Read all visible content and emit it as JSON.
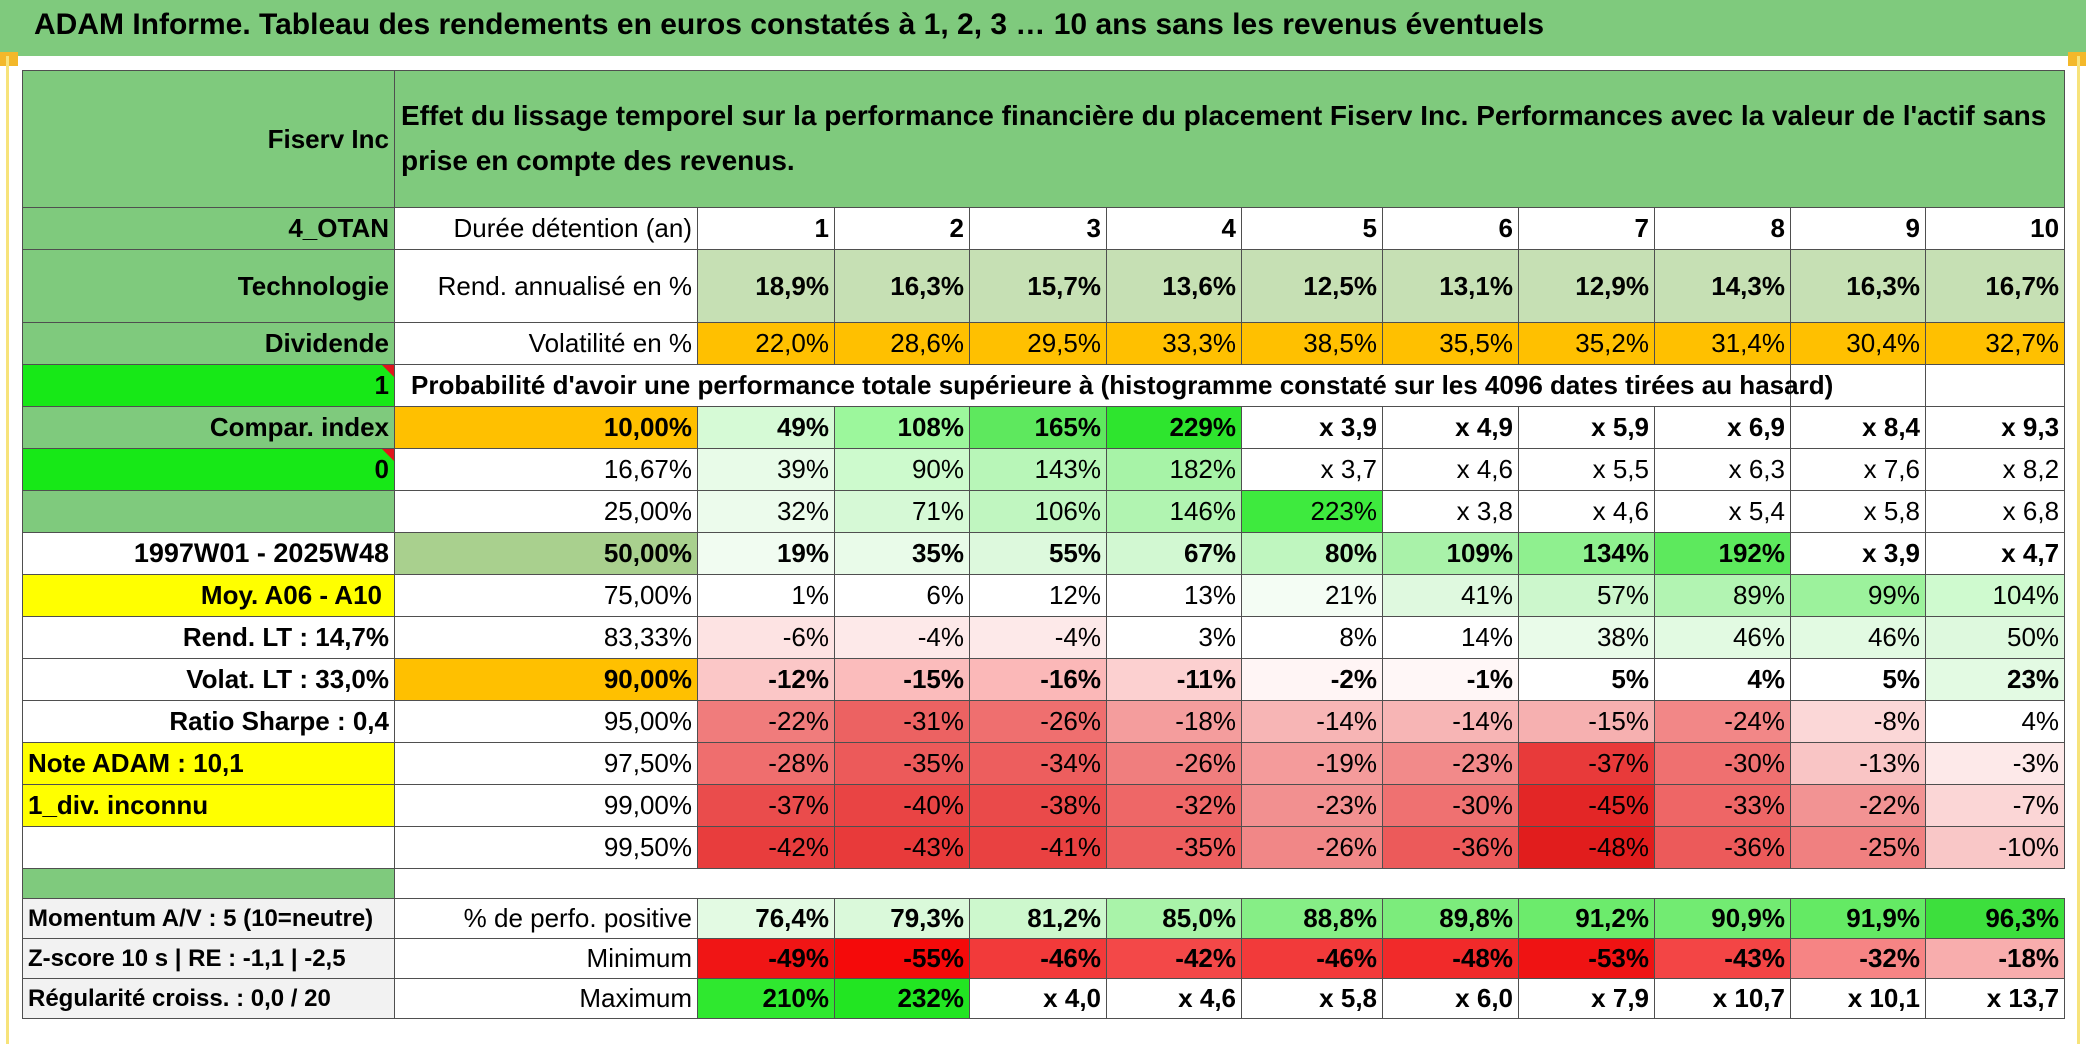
{
  "page_title": "ADAM Informe. Tableau des rendements en euros constatés à 1, 2, 3 … 10 ans sans les revenus éventuels",
  "header": {
    "company": "Fiserv Inc",
    "description": "Effet du lissage temporel sur la performance financière du placement Fiserv Inc. Performances avec la valeur de l'actif sans prise en compte des revenus."
  },
  "side": {
    "code": "4_OTAN",
    "sector": "Technologie",
    "dividend": "Dividende",
    "flag1": "1",
    "compar": "Compar. index",
    "flag0": "0",
    "period": "1997W01 - 2025W48",
    "moy": "Moy. A06 - A10",
    "rend_lt": "Rend. LT :   14,7%",
    "volat_lt": "Volat. LT :   33,0%",
    "sharpe": "Ratio Sharpe :    0,4",
    "note": "Note ADAM : 10,1",
    "div": "1_div. inconnu",
    "momentum": "Momentum A/V : 5 (10=neutre)",
    "zscore": "Z-score 10 s | RE : -1,1 | -2,5",
    "regularite": "Régularité croiss. : 0,0 / 20"
  },
  "duration": {
    "label": "Durée détention (an)",
    "years": [
      "1",
      "2",
      "3",
      "4",
      "5",
      "6",
      "7",
      "8",
      "9",
      "10"
    ]
  },
  "rend": {
    "label": "Rend. annualisé en %",
    "values": [
      "18,9%",
      "16,3%",
      "15,7%",
      "13,6%",
      "12,5%",
      "13,1%",
      "12,9%",
      "14,3%",
      "16,3%",
      "16,7%"
    ]
  },
  "volat": {
    "label": "Volatilité en %",
    "values": [
      "22,0%",
      "28,6%",
      "29,5%",
      "33,3%",
      "38,5%",
      "35,5%",
      "35,2%",
      "31,4%",
      "30,4%",
      "32,7%"
    ]
  },
  "prob_title": "Probabilité d'avoir une performance totale supérieure à (histogramme constaté sur les 4096 dates tirées au hasard)",
  "prob_rows": [
    {
      "pct": "10,00%",
      "values": [
        "49%",
        "108%",
        "165%",
        "229%",
        "x 3,9",
        "x 4,9",
        "x 5,9",
        "x 6,9",
        "x 8,4",
        "x 9,3"
      ]
    },
    {
      "pct": "16,67%",
      "values": [
        "39%",
        "90%",
        "143%",
        "182%",
        "x 3,7",
        "x 4,6",
        "x 5,5",
        "x 6,3",
        "x 7,6",
        "x 8,2"
      ]
    },
    {
      "pct": "25,00%",
      "values": [
        "32%",
        "71%",
        "106%",
        "146%",
        "223%",
        "x 3,8",
        "x 4,6",
        "x 5,4",
        "x 5,8",
        "x 6,8"
      ]
    },
    {
      "pct": "50,00%",
      "values": [
        "19%",
        "35%",
        "55%",
        "67%",
        "80%",
        "109%",
        "134%",
        "192%",
        "x 3,9",
        "x 4,7"
      ]
    },
    {
      "pct": "75,00%",
      "values": [
        "1%",
        "6%",
        "12%",
        "13%",
        "21%",
        "41%",
        "57%",
        "89%",
        "99%",
        "104%"
      ]
    },
    {
      "pct": "83,33%",
      "values": [
        "-6%",
        "-4%",
        "-4%",
        "3%",
        "8%",
        "14%",
        "38%",
        "46%",
        "46%",
        "50%"
      ]
    },
    {
      "pct": "90,00%",
      "values": [
        "-12%",
        "-15%",
        "-16%",
        "-11%",
        "-2%",
        "-1%",
        "5%",
        "4%",
        "5%",
        "23%"
      ]
    },
    {
      "pct": "95,00%",
      "values": [
        "-22%",
        "-31%",
        "-26%",
        "-18%",
        "-14%",
        "-14%",
        "-15%",
        "-24%",
        "-8%",
        "4%"
      ]
    },
    {
      "pct": "97,50%",
      "values": [
        "-28%",
        "-35%",
        "-34%",
        "-26%",
        "-19%",
        "-23%",
        "-37%",
        "-30%",
        "-13%",
        "-3%"
      ]
    },
    {
      "pct": "99,00%",
      "values": [
        "-37%",
        "-40%",
        "-38%",
        "-32%",
        "-23%",
        "-30%",
        "-45%",
        "-33%",
        "-22%",
        "-7%"
      ]
    },
    {
      "pct": "99,50%",
      "values": [
        "-42%",
        "-43%",
        "-41%",
        "-35%",
        "-26%",
        "-36%",
        "-48%",
        "-36%",
        "-25%",
        "-10%"
      ]
    }
  ],
  "stats": [
    {
      "label": "% de perfo. positive",
      "values": [
        "76,4%",
        "79,3%",
        "81,2%",
        "85,0%",
        "88,8%",
        "89,8%",
        "91,2%",
        "90,9%",
        "91,9%",
        "96,3%"
      ]
    },
    {
      "label": "Minimum",
      "values": [
        "-49%",
        "-55%",
        "-46%",
        "-42%",
        "-46%",
        "-48%",
        "-53%",
        "-43%",
        "-32%",
        "-18%"
      ]
    },
    {
      "label": "Maximum",
      "values": [
        "210%",
        "232%",
        "x 4,0",
        "x 4,6",
        "x 5,8",
        "x 6,0",
        "x 7,9",
        "x 10,7",
        "x 10,1",
        "x 13,7"
      ]
    }
  ],
  "colors": {
    "header_green": "#7fca7d",
    "rend_green": "#c6e0b4",
    "volat_orange": "#ffc000",
    "bright_green": "#17e817",
    "yellow": "#ffff00",
    "red_text": "#e0151d"
  },
  "cell_colors": {
    "prob": [
      [
        "#d6fad6",
        "#9cf79c",
        "#5ee85e",
        "#2ee52e",
        "#ffffff",
        "#ffffff",
        "#ffffff",
        "#ffffff",
        "#ffffff",
        "#ffffff"
      ],
      [
        "#e8fbe8",
        "#cdfacd",
        "#b8f6b8",
        "#a7f3a7",
        "#ffffff",
        "#ffffff",
        "#ffffff",
        "#ffffff",
        "#ffffff",
        "#ffffff"
      ],
      [
        "#ecfbec",
        "#d6f9d6",
        "#c0f6c0",
        "#b1f4b1",
        "#3eea3e",
        "#ffffff",
        "#ffffff",
        "#ffffff",
        "#ffffff",
        "#ffffff"
      ],
      [
        "#f1fcf1",
        "#e9fbe9",
        "#ddf9dd",
        "#d2f8d2",
        "#bff6bf",
        "#a9f2a9",
        "#8ff08f",
        "#5de95d",
        "#ffffff",
        "#ffffff"
      ],
      [
        "#ffffff",
        "#ffffff",
        "#ffffff",
        "#ffffff",
        "#f4fdf4",
        "#dff9df",
        "#ccf7cc",
        "#b2f4b2",
        "#9cf29c",
        "#cffacf"
      ],
      [
        "#fde3e3",
        "#fde9e9",
        "#fde9e9",
        "#ffffff",
        "#ffffff",
        "#ffffff",
        "#e9fbe9",
        "#e2fae2",
        "#e2fae2",
        "#def9de"
      ],
      [
        "#fbc7c7",
        "#fbbcbc",
        "#fbb8b8",
        "#fcd0d0",
        "#fff5f5",
        "#fff7f7",
        "#ffffff",
        "#ffffff",
        "#ffffff",
        "#e3fae3"
      ],
      [
        "#f07c7c",
        "#ec6262",
        "#ef6f6f",
        "#f49d9d",
        "#f7b5b5",
        "#f7b5b5",
        "#f6b0b0",
        "#f28787",
        "#fbd7d7",
        "#ffffff"
      ],
      [
        "#ef6e6e",
        "#ec5a5a",
        "#ed5e5e",
        "#f07e7e",
        "#f49b9b",
        "#f28a8a",
        "#e83a3a",
        "#ef7070",
        "#f9c5c5",
        "#fde9e9"
      ],
      [
        "#ea4c4c",
        "#e94444",
        "#ea4a4a",
        "#ee6767",
        "#f29090",
        "#ef7171",
        "#e32626",
        "#ee6666",
        "#f29393",
        "#fbd6d6"
      ],
      [
        "#e83d3d",
        "#e83a3a",
        "#e94141",
        "#ed5e5e",
        "#f18787",
        "#ec5a5a",
        "#e11d1d",
        "#ec5a5a",
        "#f08080",
        "#f9c7c7"
      ]
    ],
    "stats": [
      [
        "#e3fae3",
        "#daf9da",
        "#cdf8cd",
        "#a9f3a9",
        "#86ee86",
        "#7cec7c",
        "#6ceb6c",
        "#72eb72",
        "#64ea64",
        "#3ddf3d"
      ],
      [
        "#f01515",
        "#f50a0a",
        "#f23a3a",
        "#f34848",
        "#f23a3a",
        "#f12a2a",
        "#ef1313",
        "#f34545",
        "#f68484",
        "#f8adad"
      ],
      [
        "#2fe82f",
        "#22e522",
        "#ffffff",
        "#ffffff",
        "#ffffff",
        "#ffffff",
        "#ffffff",
        "#ffffff",
        "#ffffff",
        "#ffffff"
      ]
    ]
  }
}
